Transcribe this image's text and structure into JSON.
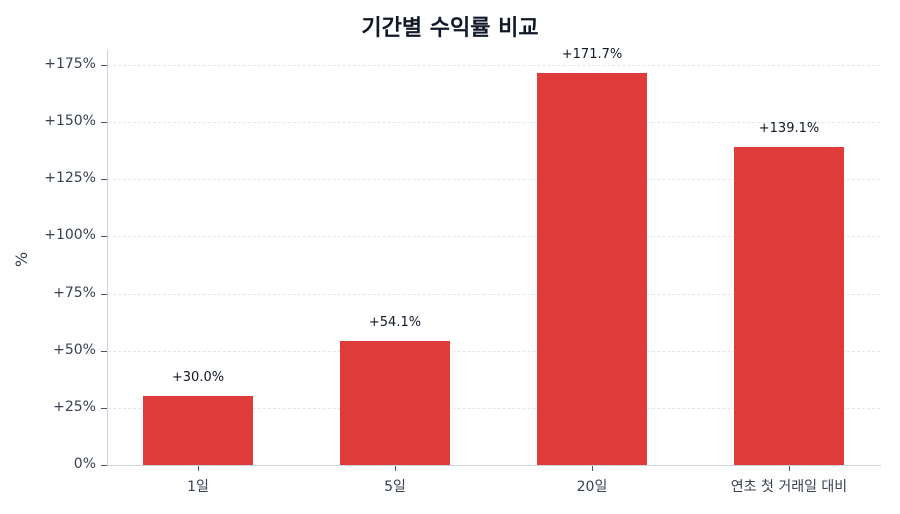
{
  "chart_data": {
    "type": "bar",
    "title": "기간별 수익률 비교",
    "xlabel": "",
    "ylabel": "%",
    "categories": [
      "1일",
      "5일",
      "20일",
      "연초 첫 거래일 대비"
    ],
    "values": [
      30.0,
      54.1,
      171.7,
      139.1
    ],
    "data_labels": [
      "+30.0%",
      "+54.1%",
      "+171.7%",
      "+139.1%"
    ],
    "bar_color": "#e03b3b",
    "ylim": [
      0,
      180
    ],
    "yticks": [
      0,
      25,
      50,
      75,
      100,
      125,
      150,
      175
    ],
    "ytick_labels": [
      "0%",
      "+25%",
      "+50%",
      "+75%",
      "+100%",
      "+125%",
      "+150%",
      "+175%"
    ],
    "grid": "horizontal dashed",
    "legend": null
  }
}
